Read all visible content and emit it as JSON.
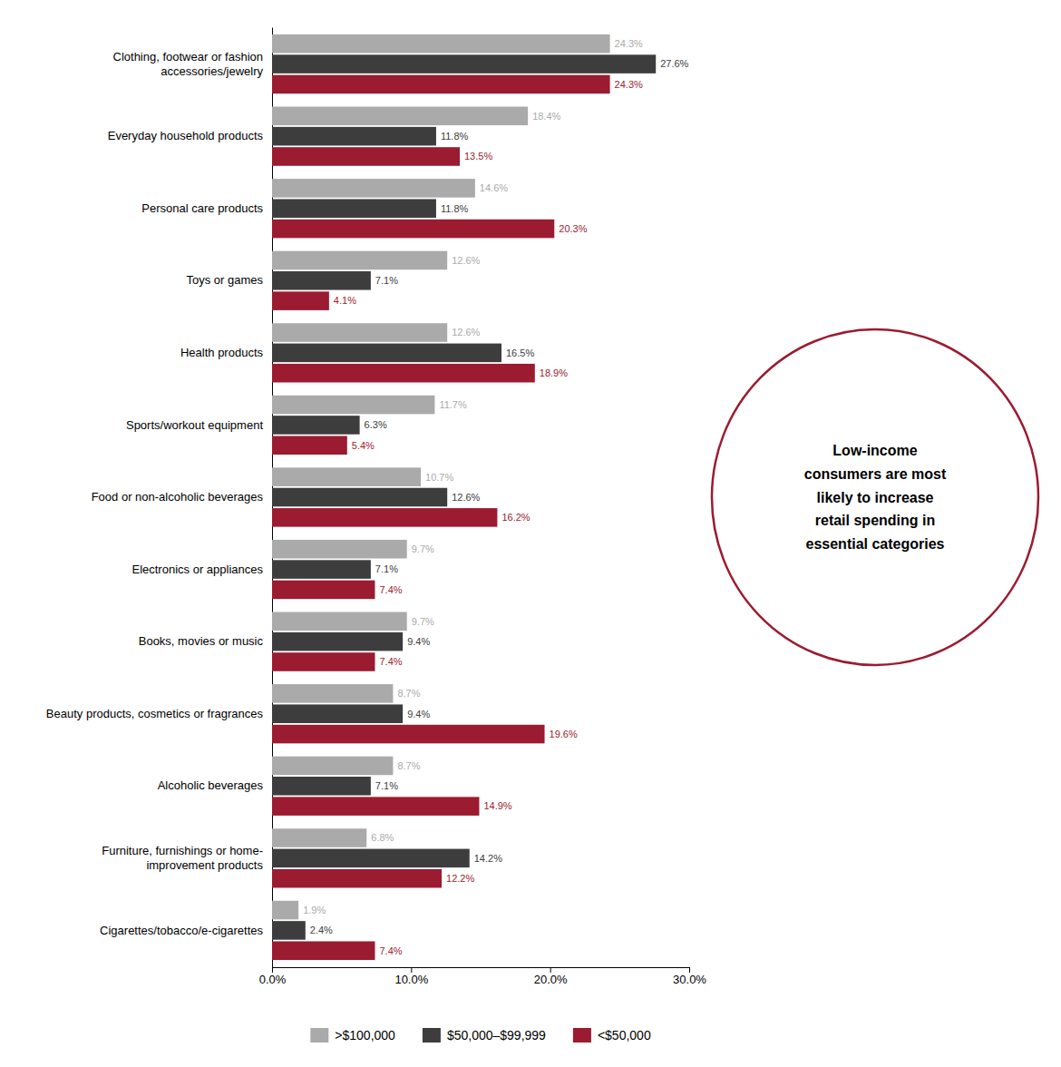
{
  "chart_data": {
    "type": "bar",
    "orientation": "horizontal",
    "categories": [
      "Clothing, footwear or fashion\naccessories/jewelry",
      "Everyday household products",
      "Personal care products",
      "Toys or games",
      "Health products",
      "Sports/workout equipment",
      "Food or non-alcoholic beverages",
      "Electronics or appliances",
      "Books, movies or music",
      "Beauty products, cosmetics or fragrances",
      "Alcoholic beverages",
      "Furniture, furnishings or home-\nimprovement products",
      "Cigarettes/tobacco/e-cigarettes"
    ],
    "series": [
      {
        "name": ">$100,000",
        "color": "#aaaaaa",
        "values": [
          24.3,
          18.4,
          14.6,
          12.6,
          12.6,
          11.7,
          10.7,
          9.7,
          9.7,
          8.7,
          8.7,
          6.8,
          1.9
        ],
        "value_labels": [
          "24.3%",
          "18.4%",
          "14.6%",
          "12.6%",
          "12.6%",
          "11.7%",
          "10.7%",
          "9.7%",
          "9.7%",
          "8.7%",
          "8.7%",
          "6.8%",
          "1.9%"
        ]
      },
      {
        "name": "$50,000–$99,999",
        "color": "#3d3d3d",
        "values": [
          27.6,
          11.8,
          11.8,
          7.1,
          16.5,
          6.3,
          12.6,
          7.1,
          9.4,
          9.4,
          7.1,
          14.2,
          2.4
        ],
        "value_labels": [
          "27.6%",
          "11.8%",
          "11.8%",
          "7.1%",
          "16.5%",
          "6.3%",
          "12.6%",
          "7.1%",
          "9.4%",
          "9.4%",
          "7.1%",
          "14.2%",
          "2.4%"
        ]
      },
      {
        "name": "<$50,000",
        "color": "#9b1b30",
        "values": [
          24.3,
          13.5,
          20.3,
          4.1,
          18.9,
          5.4,
          16.2,
          7.4,
          7.4,
          19.6,
          14.9,
          12.2,
          7.4
        ],
        "value_labels": [
          "24.3%",
          "13.5%",
          "20.3%",
          "4.1%",
          "18.9%",
          "5.4%",
          "16.2%",
          "7.4%",
          "7.4%",
          "19.6%",
          "14.9%",
          "12.2%",
          "7.4%"
        ]
      }
    ],
    "xlim": [
      0,
      30
    ],
    "xticks": [
      {
        "value": 0,
        "label": "0.0%"
      },
      {
        "value": 10,
        "label": "10.0%"
      },
      {
        "value": 20,
        "label": "20.0%"
      },
      {
        "value": 30,
        "label": "30.0%"
      }
    ],
    "data_labels": true,
    "grid": false,
    "legend": "bottom",
    "annotations": [
      "Low-income\nconsumers are most\nlikely to increase\nretail spending in\nessential categories"
    ]
  }
}
